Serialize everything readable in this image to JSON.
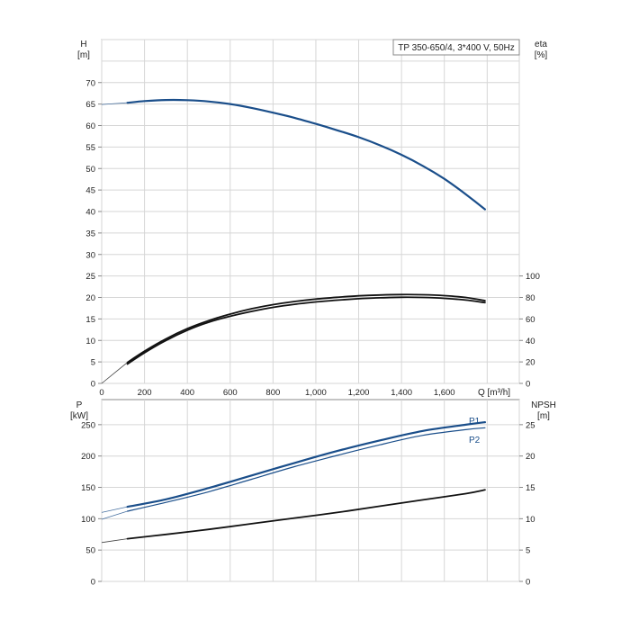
{
  "chart_data": {
    "type": "line",
    "title": "TP 350-650/4, 3*400 V, 50Hz",
    "grid": true,
    "x_axis": {
      "label": "Q [m³/h]",
      "range": [
        0,
        1950
      ],
      "ticks": [
        0,
        200,
        400,
        600,
        800,
        1000,
        1200,
        1400,
        1600
      ],
      "tick_labels": [
        "0",
        "200",
        "400",
        "600",
        "800",
        "1,000",
        "1,200",
        "1,400",
        "1,600"
      ],
      "gridlines": [
        0,
        200,
        400,
        600,
        800,
        1000,
        1200,
        1400,
        1600,
        1800,
        1950
      ]
    },
    "upper_panel": {
      "left_axis": {
        "label_top": "H",
        "label_unit": "[m]",
        "range": [
          0,
          80
        ],
        "ticks": [
          0,
          5,
          10,
          15,
          20,
          25,
          30,
          35,
          40,
          45,
          50,
          55,
          60,
          65,
          70
        ],
        "tick_labels": [
          "0",
          "5",
          "10",
          "15",
          "20",
          "25",
          "30",
          "35",
          "40",
          "45",
          "50",
          "55",
          "60",
          "65",
          "70"
        ]
      },
      "right_axis": {
        "label_top": "eta",
        "label_unit": "[%]",
        "range": [
          0,
          320
        ],
        "ticks": [
          0,
          20,
          40,
          60,
          80,
          100
        ],
        "tick_labels": [
          "0",
          "20",
          "40",
          "60",
          "80",
          "100"
        ]
      },
      "series": [
        {
          "axis": "left",
          "color": "#1a4e8a",
          "x": [
            120,
            200,
            300,
            400,
            500,
            600,
            700,
            800,
            900,
            1000,
            1100,
            1200,
            1300,
            1400,
            1500,
            1600,
            1700,
            1790
          ],
          "y": [
            65.3,
            65.7,
            65.95,
            65.9,
            65.6,
            65.0,
            64.1,
            63.0,
            61.8,
            60.4,
            58.9,
            57.3,
            55.4,
            53.2,
            50.6,
            47.6,
            44.0,
            40.5
          ],
          "extrapolation": {
            "x": [
              0,
              120
            ],
            "y": [
              64.9,
              65.3
            ]
          }
        },
        {
          "axis": "right",
          "color": "#111111",
          "x": [
            120,
            200,
            300,
            400,
            500,
            600,
            700,
            800,
            900,
            1000,
            1100,
            1200,
            1300,
            1400,
            1500,
            1600,
            1700,
            1790
          ],
          "y": [
            19.5,
            30,
            41.5,
            51,
            58.5,
            64.5,
            69.5,
            73.3,
            76.2,
            78.5,
            80.2,
            81.5,
            82.3,
            82.7,
            82.5,
            81.7,
            80.0,
            77.0
          ],
          "extrapolation": {
            "x": [
              0,
              120
            ],
            "y": [
              0,
              19.5
            ]
          }
        },
        {
          "axis": "right",
          "color": "#111111",
          "x": [
            120,
            200,
            300,
            400,
            500,
            600,
            700,
            800,
            900,
            1000,
            1100,
            1200,
            1300,
            1400,
            1500,
            1600,
            1700,
            1790
          ],
          "y": [
            18.0,
            28.5,
            40,
            49.5,
            57,
            62.5,
            67,
            70.8,
            73.6,
            75.8,
            77.5,
            78.8,
            79.7,
            80.2,
            80.0,
            79.2,
            77.6,
            75.2
          ]
        }
      ]
    },
    "lower_panel": {
      "left_axis": {
        "label_top": "P",
        "label_unit": "[kW]",
        "range": [
          0,
          290
        ],
        "ticks": [
          0,
          50,
          100,
          150,
          200,
          250
        ],
        "tick_labels": [
          "0",
          "50",
          "100",
          "150",
          "200",
          "250"
        ]
      },
      "right_axis": {
        "label_top": "NPSH",
        "label_unit": "[m]",
        "range": [
          0,
          29
        ],
        "ticks": [
          0,
          5,
          10,
          15,
          20,
          25
        ],
        "tick_labels": [
          "0",
          "5",
          "10",
          "15",
          "20",
          "25"
        ]
      },
      "series": [
        {
          "name": "P1",
          "axis": "left",
          "color": "#1a4e8a",
          "x": [
            120,
            300,
            500,
            700,
            900,
            1100,
            1300,
            1500,
            1700,
            1790
          ],
          "y": [
            119,
            131,
            149,
            169,
            189,
            208,
            225,
            240,
            250,
            254
          ],
          "extrapolation": {
            "x": [
              0,
              120
            ],
            "y": [
              110,
              119
            ]
          }
        },
        {
          "name": "P2",
          "axis": "left",
          "color": "#1a4e8a",
          "x": [
            120,
            300,
            500,
            700,
            900,
            1100,
            1300,
            1500,
            1700,
            1790
          ],
          "y": [
            112,
            126,
            143,
            163,
            183,
            201,
            218,
            233,
            242,
            245
          ],
          "extrapolation": {
            "x": [
              0,
              120
            ],
            "y": [
              99,
              112
            ]
          }
        },
        {
          "axis": "right",
          "color": "#111111",
          "x": [
            120,
            300,
            500,
            700,
            900,
            1100,
            1300,
            1500,
            1700,
            1790
          ],
          "y": [
            6.8,
            7.5,
            8.3,
            9.2,
            10.1,
            11.0,
            12.0,
            13.0,
            14.0,
            14.6
          ],
          "extrapolation": {
            "x": [
              0,
              120
            ],
            "y": [
              6.2,
              6.8
            ]
          }
        }
      ]
    }
  }
}
